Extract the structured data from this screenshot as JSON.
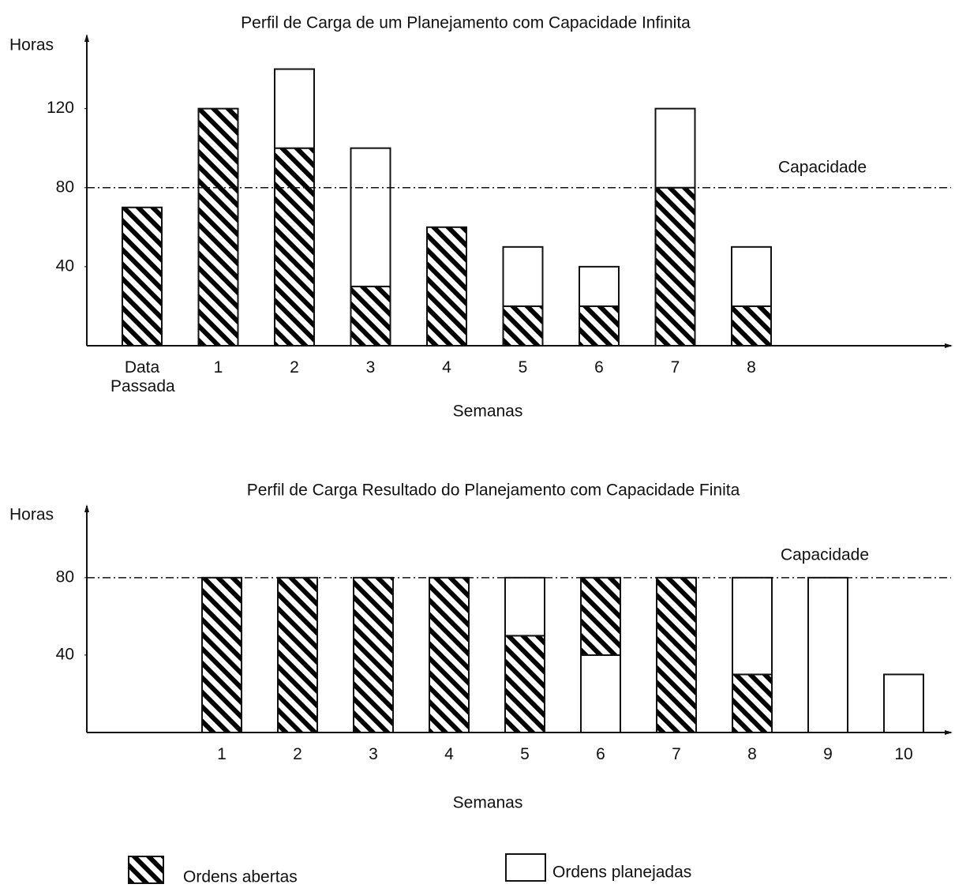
{
  "chart_data": [
    {
      "type": "bar",
      "stacked": true,
      "title": "Perfil de Carga de um Planejamento com Capacidade Infinita",
      "y_label": "Horas",
      "x_label": "Semanas",
      "categories": [
        "Data Passada",
        "1",
        "2",
        "3",
        "4",
        "5",
        "6",
        "7",
        "8"
      ],
      "series": [
        {
          "color": "#000000",
          "pattern": "hatch",
          "values": [
            70,
            120,
            100,
            30,
            60,
            20,
            20,
            80,
            20
          ]
        },
        {
          "color": "#ffffff",
          "values": [
            0,
            0,
            40,
            70,
            0,
            30,
            20,
            40,
            30
          ]
        }
      ],
      "capacity": 80,
      "capacity_label": "Capacidade",
      "ylim": [
        0,
        155
      ],
      "yticks": [
        40,
        80,
        120
      ]
    },
    {
      "type": "bar",
      "stacked": true,
      "title": "Perfil de Carga Resultado do Planejamento com Capacidade Finita",
      "y_label": "Horas",
      "x_label": "Semanas",
      "categories": [
        null,
        "1",
        "2",
        "3",
        "4",
        "5",
        "6",
        "7",
        "8",
        "9",
        "10"
      ],
      "series": [
        {
          "name": "Ordens abertas",
          "color": "#000000",
          "pattern": "hatch",
          "values": [
            null,
            80,
            80,
            80,
            80,
            50,
            40,
            80,
            30,
            0,
            0
          ]
        },
        {
          "name": "Ordens planejadas",
          "color": "#ffffff",
          "values": [
            null,
            0,
            0,
            0,
            0,
            30,
            40,
            0,
            50,
            80,
            30
          ]
        }
      ],
      "reversed_stacks": [
        6
      ],
      "capacity": 80,
      "capacity_label": "Capacidade",
      "ylim": [
        0,
        115
      ],
      "yticks": [
        40,
        80
      ]
    }
  ]
}
